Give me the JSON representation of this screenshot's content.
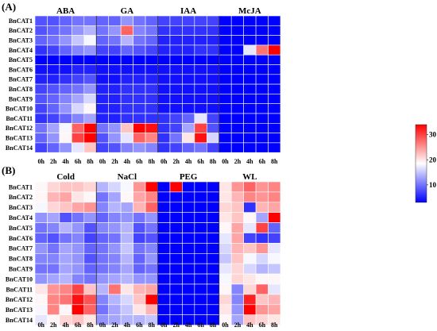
{
  "chart_data": [
    {
      "type": "heatmap",
      "panel_label": "(A)",
      "rows": [
        "BnCAT1",
        "BnCAT2",
        "BnCAT3",
        "BnCAT4",
        "BnCAT5",
        "BnCAT6",
        "BnCAT7",
        "BnCAT8",
        "BnCAT9",
        "BnCAT10",
        "BnCAT11",
        "BnCAT12",
        "BnCAT13",
        "BnCAT14"
      ],
      "columns": [
        "0h",
        "2h",
        "4h",
        "6h",
        "8h"
      ],
      "groups": [
        {
          "name": "ABA",
          "values": [
            [
              8,
              8,
              9,
              10,
              10
            ],
            [
              8,
              9,
              10,
              12,
              14
            ],
            [
              9,
              10,
              12,
              15,
              18
            ],
            [
              6,
              7,
              9,
              11,
              12
            ],
            [
              3,
              3,
              3,
              3,
              3
            ],
            [
              4,
              4,
              4,
              5,
              5
            ],
            [
              5,
              5,
              6,
              7,
              8
            ],
            [
              7,
              8,
              9,
              10,
              12
            ],
            [
              8,
              9,
              11,
              13,
              16
            ],
            [
              7,
              9,
              12,
              16,
              19
            ],
            [
              6,
              7,
              9,
              11,
              13
            ],
            [
              10,
              13,
              18,
              28,
              34
            ],
            [
              9,
              12,
              19,
              30,
              34
            ],
            [
              7,
              9,
              12,
              17,
              22
            ]
          ]
        },
        {
          "name": "GA",
          "values": [
            [
              9,
              9,
              12,
              10,
              9
            ],
            [
              10,
              12,
              28,
              11,
              10
            ],
            [
              9,
              10,
              14,
              10,
              9
            ],
            [
              7,
              7,
              9,
              8,
              7
            ],
            [
              3,
              3,
              3,
              3,
              3
            ],
            [
              4,
              4,
              4,
              4,
              4
            ],
            [
              4,
              4,
              5,
              5,
              5
            ],
            [
              5,
              5,
              6,
              6,
              6
            ],
            [
              5,
              5,
              6,
              6,
              6
            ],
            [
              5,
              5,
              6,
              6,
              6
            ],
            [
              5,
              5,
              6,
              6,
              6
            ],
            [
              10,
              12,
              22,
              34,
              33
            ],
            [
              8,
              12,
              17,
              28,
              26
            ],
            [
              7,
              8,
              11,
              12,
              11
            ]
          ]
        },
        {
          "name": "IAA",
          "values": [
            [
              7,
              7,
              7,
              7,
              7
            ],
            [
              6,
              6,
              6,
              6,
              6
            ],
            [
              5,
              5,
              5,
              5,
              5
            ],
            [
              5,
              5,
              5,
              6,
              6
            ],
            [
              3,
              3,
              3,
              3,
              3
            ],
            [
              4,
              4,
              4,
              4,
              4
            ],
            [
              4,
              4,
              4,
              4,
              4
            ],
            [
              4,
              4,
              4,
              4,
              4
            ],
            [
              4,
              4,
              4,
              4,
              4
            ],
            [
              4,
              4,
              4,
              4,
              4
            ],
            [
              6,
              7,
              9,
              17,
              7
            ],
            [
              6,
              7,
              13,
              30,
              8
            ],
            [
              6,
              10,
              20,
              33,
              16
            ],
            [
              6,
              7,
              9,
              10,
              7
            ]
          ]
        },
        {
          "name": "McJA",
          "values": [
            [
              3,
              3,
              3,
              3,
              3
            ],
            [
              3,
              3,
              3,
              3,
              3
            ],
            [
              3,
              3,
              3,
              3,
              3
            ],
            [
              3,
              3,
              17,
              27,
              34
            ],
            [
              3,
              3,
              3,
              3,
              3
            ],
            [
              3,
              3,
              3,
              3,
              3
            ],
            [
              3,
              3,
              3,
              3,
              3
            ],
            [
              3,
              3,
              3,
              3,
              3
            ],
            [
              3,
              3,
              3,
              3,
              3
            ],
            [
              3,
              3,
              3,
              3,
              3
            ],
            [
              3,
              3,
              3,
              3,
              3
            ],
            [
              3,
              3,
              3,
              3,
              3
            ],
            [
              3,
              3,
              3,
              3,
              3
            ],
            [
              3,
              3,
              3,
              3,
              3
            ]
          ]
        }
      ]
    },
    {
      "type": "heatmap",
      "panel_label": "(B)",
      "rows": [
        "BnCAT1",
        "BnCAT2",
        "BnCAT3",
        "BnCAT4",
        "BnCAT5",
        "BnCAT6",
        "BnCAT7",
        "BnCAT8",
        "BnCAT9",
        "BnCAT10",
        "BnCAT11",
        "BnCAT12",
        "BnCAT13",
        "BnCAT14"
      ],
      "columns": [
        "0h",
        "2h",
        "4h",
        "6h",
        "8h"
      ],
      "groups": [
        {
          "name": "Cold",
          "values": [
            [
              19,
              21,
              22,
              22,
              21
            ],
            [
              19,
              23,
              24,
              20,
              19
            ],
            [
              18,
              21,
              22,
              24,
              25
            ],
            [
              12,
              13,
              8,
              10,
              12
            ],
            [
              10,
              11,
              14,
              12,
              8
            ],
            [
              9,
              8,
              10,
              11,
              7
            ],
            [
              12,
              10,
              13,
              12,
              9
            ],
            [
              11,
              11,
              13,
              12,
              8
            ],
            [
              10,
              10,
              13,
              12,
              9
            ],
            [
              12,
              13,
              14,
              11,
              10
            ],
            [
              20,
              25,
              26,
              30,
              22
            ],
            [
              19,
              26,
              27,
              33,
              29
            ],
            [
              18,
              26,
              19,
              34,
              28
            ],
            [
              17,
              19,
              21,
              22,
              20
            ]
          ]
        },
        {
          "name": "NaCl",
          "values": [
            [
              14,
              16,
              18,
              25,
              34
            ],
            [
              10,
              13,
              19,
              24,
              26
            ],
            [
              11,
              14,
              13,
              23,
              28
            ],
            [
              9,
              11,
              12,
              10,
              12
            ],
            [
              11,
              12,
              14,
              8,
              10
            ],
            [
              9,
              10,
              14,
              7,
              8
            ],
            [
              10,
              12,
              15,
              10,
              11
            ],
            [
              10,
              11,
              14,
              9,
              12
            ],
            [
              10,
              11,
              13,
              9,
              10
            ],
            [
              12,
              13,
              14,
              12,
              12
            ],
            [
              14,
              27,
              20,
              23,
              24
            ],
            [
              11,
              14,
              16,
              22,
              34
            ],
            [
              10,
              13,
              15,
              20,
              23
            ],
            [
              12,
              13,
              14,
              14,
              15
            ]
          ]
        },
        {
          "name": "PEG",
          "values": [
            [
              3,
              34,
              3,
              3,
              3
            ],
            [
              3,
              3,
              3,
              3,
              3
            ],
            [
              3,
              3,
              3,
              3,
              3
            ],
            [
              3,
              3,
              3,
              3,
              3
            ],
            [
              3,
              3,
              3,
              3,
              3
            ],
            [
              3,
              3,
              3,
              3,
              3
            ],
            [
              3,
              3,
              3,
              3,
              3
            ],
            [
              3,
              3,
              3,
              3,
              3
            ],
            [
              3,
              3,
              3,
              3,
              3
            ],
            [
              3,
              3,
              3,
              3,
              3
            ],
            [
              3,
              3,
              3,
              3,
              3
            ],
            [
              3,
              3,
              3,
              3,
              3
            ],
            [
              3,
              3,
              3,
              3,
              3
            ],
            [
              3,
              3,
              3,
              3,
              3
            ]
          ]
        },
        {
          "name": "WL",
          "values": [
            [
              20,
              25,
              28,
              25,
              26
            ],
            [
              20,
              23,
              26,
              25,
              26
            ],
            [
              21,
              22,
              6,
              23,
              24
            ],
            [
              20,
              22,
              19,
              13,
              34
            ],
            [
              19,
              24,
              17,
              30,
              9
            ],
            [
              17,
              24,
              7,
              6,
              7
            ],
            [
              16,
              23,
              22,
              25,
              17
            ],
            [
              15,
              22,
              18,
              16,
              18
            ],
            [
              17,
              21,
              16,
              14,
              15
            ],
            [
              18,
              21,
              20,
              19,
              19
            ],
            [
              19,
              11,
              21,
              28,
              17
            ],
            [
              21,
              11,
              32,
              22,
              23
            ],
            [
              20,
              12,
              34,
              25,
              24
            ],
            [
              19,
              13,
              22,
              21,
              20
            ]
          ]
        }
      ]
    }
  ],
  "colorbar": {
    "min": 3,
    "max": 34,
    "ticks": [
      10,
      20,
      30
    ],
    "stops": [
      "#0000ff",
      "#ffffff",
      "#ff0000"
    ]
  }
}
